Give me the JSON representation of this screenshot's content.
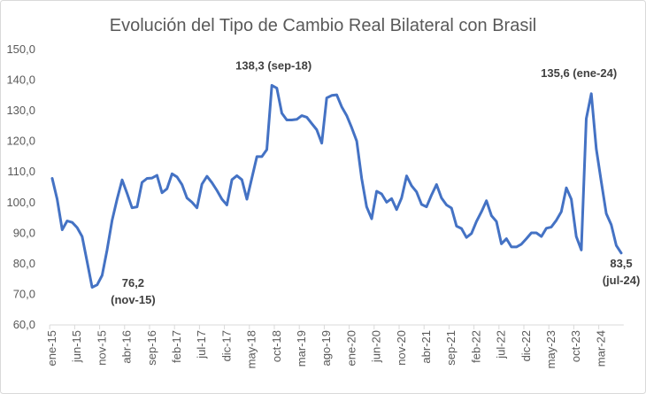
{
  "chart_data": {
    "type": "line",
    "title": "Evolución del Tipo de Cambio Real Bilateral con Brasil",
    "xlabel": "",
    "ylabel": "",
    "ylim": [
      60,
      150
    ],
    "yticks": [
      "60,0",
      "70,0",
      "80,0",
      "90,0",
      "100,0",
      "110,0",
      "120,0",
      "130,0",
      "140,0",
      "150,0"
    ],
    "ytick_values": [
      60,
      70,
      80,
      90,
      100,
      110,
      120,
      130,
      140,
      150
    ],
    "grid": false,
    "line_color": "#4472C4",
    "x_start": "ene-15",
    "x_end": "jul-24",
    "xtick_labels": [
      "ene-15",
      "jun-15",
      "nov-15",
      "abr-16",
      "sep-16",
      "feb-17",
      "jul-17",
      "dic-17",
      "may-18",
      "oct-18",
      "mar-19",
      "ago-19",
      "ene-20",
      "jun-20",
      "nov-20",
      "abr-21",
      "sep-21",
      "feb-22",
      "jul-22",
      "dic-22",
      "may-23",
      "oct-23",
      "mar-24"
    ],
    "xtick_every_months": 5,
    "values": [
      107.9,
      101.1,
      91.1,
      94.0,
      93.5,
      91.8,
      88.9,
      80.6,
      72.3,
      73.1,
      76.2,
      84.5,
      94.2,
      101.1,
      107.4,
      103.0,
      98.3,
      98.6,
      106.6,
      107.9,
      108.0,
      108.9,
      103.2,
      104.5,
      109.4,
      108.4,
      105.9,
      101.5,
      100.1,
      98.3,
      106.0,
      108.6,
      106.5,
      104.0,
      101.1,
      99.2,
      107.5,
      108.8,
      107.5,
      101.1,
      108.0,
      115.0,
      115.0,
      117.3,
      138.3,
      137.4,
      129.2,
      127.0,
      127.0,
      127.2,
      128.4,
      127.9,
      125.8,
      123.8,
      119.4,
      134.2,
      135.0,
      135.2,
      131.3,
      128.4,
      124.5,
      120.1,
      107.9,
      98.6,
      94.7,
      103.7,
      102.8,
      100.1,
      101.3,
      97.7,
      101.5,
      108.7,
      105.5,
      103.5,
      99.4,
      98.6,
      102.5,
      105.9,
      101.5,
      99.2,
      98.2,
      92.3,
      91.5,
      88.6,
      89.9,
      93.8,
      97.0,
      100.6,
      95.7,
      93.8,
      86.5,
      88.2,
      85.5,
      85.5,
      86.4,
      88.2,
      90.1,
      90.1,
      88.9,
      91.6,
      92.0,
      94.2,
      97.0,
      104.8,
      101.1,
      88.9,
      84.5,
      127.4,
      135.6,
      117.6,
      106.9,
      96.4,
      92.8,
      86.0,
      83.5
    ],
    "annotations": [
      {
        "index": 10,
        "line1": "76,2",
        "line2": "(nov-15)"
      },
      {
        "index": 44,
        "line1": "138,3 (sep-18)",
        "line2": ""
      },
      {
        "index": 108,
        "line1": "135,6 (ene-24)",
        "line2": ""
      },
      {
        "index": 114,
        "line1": "83,5",
        "line2": "(jul-24)"
      }
    ]
  }
}
